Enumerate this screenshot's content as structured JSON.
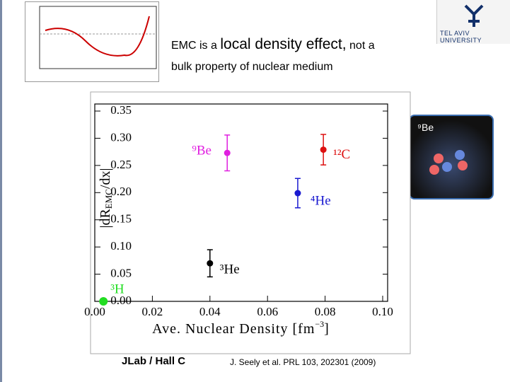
{
  "slide": {
    "title_parts": [
      "EMC is a",
      "local density effect,",
      "not a",
      "bulk property of nuclear medium"
    ],
    "logo_text": "TEL AVIV UNIVERSITY",
    "image_label": "⁹Be",
    "footer_left": "JLab / Hall C",
    "footer_right": "J. Seely et al. PRL  103, 202301 (2009)"
  },
  "chart_data": {
    "type": "scatter",
    "ylabel_parts": [
      "|dR",
      "EMC",
      "/dx|"
    ],
    "xlabel_parts": [
      "Ave. Nuclear Density  [fm",
      "−3",
      "]"
    ],
    "xlim": [
      0,
      0.1
    ],
    "ylim": [
      0,
      0.35
    ],
    "xticks": [
      {
        "value": 0,
        "label": "0.00"
      },
      {
        "value": 0.02,
        "label": "0.02"
      },
      {
        "value": 0.04,
        "label": "0.04"
      },
      {
        "value": 0.06,
        "label": "0.06"
      },
      {
        "value": 0.08,
        "label": "0.08"
      },
      {
        "value": 0.1,
        "label": "0.10"
      }
    ],
    "yticks": [
      {
        "value": 0,
        "label": "0.00"
      },
      {
        "value": 0.05,
        "label": "0.05"
      },
      {
        "value": 0.1,
        "label": "0.10"
      },
      {
        "value": 0.15,
        "label": "0.15"
      },
      {
        "value": 0.2,
        "label": "0.20"
      },
      {
        "value": 0.25,
        "label": "0.25"
      },
      {
        "value": 0.3,
        "label": "0.30"
      },
      {
        "value": 0.35,
        "label": "0.35"
      }
    ],
    "series": [
      {
        "name": "³H",
        "color": "#22dd22",
        "x": [
          0.003
        ],
        "values": [
          0.0
        ]
      },
      {
        "name": "³He",
        "color": "#000000",
        "x": [
          0.04
        ],
        "values": [
          0.07
        ],
        "errors": [
          0.025
        ]
      },
      {
        "name": "⁹Be",
        "color": "#e020e0",
        "x": [
          0.046
        ],
        "values": [
          0.273
        ],
        "errors": [
          0.033
        ]
      },
      {
        "name": "⁴He",
        "color": "#1a1ad0",
        "x": [
          0.0705
        ],
        "values": [
          0.199
        ],
        "errors": [
          0.027
        ]
      },
      {
        "name": "¹²C",
        "color": "#dd1111",
        "x": [
          0.0794
        ],
        "values": [
          0.279
        ],
        "errors": [
          0.028
        ]
      }
    ]
  }
}
